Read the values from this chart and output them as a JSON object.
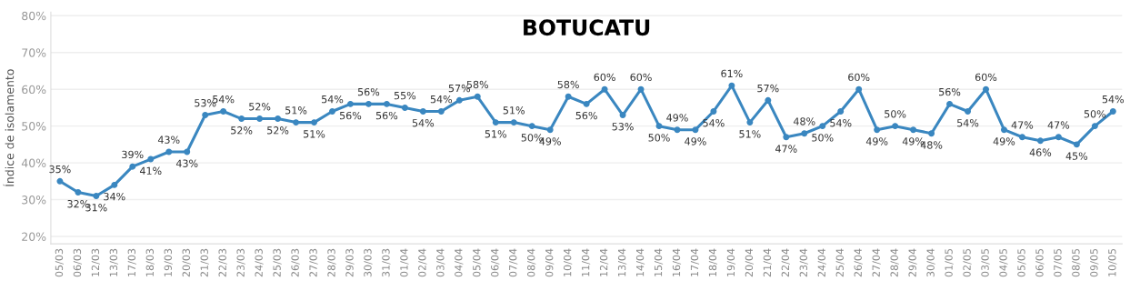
{
  "chart_data": {
    "type": "line",
    "title": "BOTUCATU",
    "ylabel": "Índice de isolamento",
    "categories": [
      "05/03",
      "06/03",
      "12/03",
      "13/03",
      "17/03",
      "18/03",
      "19/03",
      "20/03",
      "21/03",
      "22/03",
      "23/03",
      "24/03",
      "25/03",
      "26/03",
      "27/03",
      "28/03",
      "29/03",
      "30/03",
      "31/03",
      "01/04",
      "02/04",
      "03/04",
      "04/04",
      "05/04",
      "06/04",
      "07/04",
      "08/04",
      "09/04",
      "10/04",
      "11/04",
      "12/04",
      "13/04",
      "14/04",
      "15/04",
      "16/04",
      "17/04",
      "18/04",
      "19/04",
      "20/04",
      "21/04",
      "22/04",
      "23/04",
      "24/04",
      "25/04",
      "26/04",
      "27/04",
      "28/04",
      "29/04",
      "30/04",
      "01/05",
      "02/05",
      "03/05",
      "04/05",
      "05/05",
      "06/05",
      "07/05",
      "08/05",
      "09/05",
      "10/05"
    ],
    "series": [
      {
        "color": "#3a87c0",
        "values": [
          35,
          32,
          31,
          34,
          39,
          41,
          43,
          43,
          53,
          54,
          52,
          52,
          52,
          51,
          51,
          54,
          56,
          56,
          56,
          55,
          54,
          54,
          57,
          58,
          51,
          51,
          50,
          49,
          58,
          56,
          60,
          53,
          60,
          50,
          49,
          49,
          54,
          61,
          51,
          57,
          47,
          48,
          50,
          54,
          60,
          49,
          50,
          49,
          48,
          56,
          54,
          60,
          49,
          47,
          46,
          47,
          45,
          50,
          54
        ],
        "value_labels": [
          "35%",
          "32%",
          "31%",
          "34%",
          "39%",
          "41%",
          "43%",
          "43%",
          "53%",
          "54%",
          "52%",
          "52%",
          "52%",
          "51%",
          "51%",
          "54%",
          "56%",
          "56%",
          "56%",
          "55%",
          "54%",
          "54%",
          "57%",
          "58%",
          "51%",
          "51%",
          "50%",
          "49%",
          "58%",
          "56%",
          "60%",
          "53%",
          "60%",
          "50%",
          "49%",
          "49%",
          "54%",
          "61%",
          "51%",
          "57%",
          "47%",
          "48%",
          "50%",
          "54%",
          "60%",
          "49%",
          "50%",
          "49%",
          "48%",
          "56%",
          "54%",
          "60%",
          "49%",
          "47%",
          "46%",
          "47%",
          "45%",
          "50%",
          "54%"
        ]
      }
    ],
    "ylim": [
      18,
      81
    ],
    "yticks": [
      {
        "value": 20,
        "label": "20%"
      },
      {
        "value": 30,
        "label": "30%"
      },
      {
        "value": 40,
        "label": "40%"
      },
      {
        "value": 50,
        "label": "50%"
      },
      {
        "value": 60,
        "label": "60%"
      },
      {
        "value": 70,
        "label": "70%"
      },
      {
        "value": 80,
        "label": "80%"
      }
    ],
    "grid": "y",
    "marker": "circle",
    "line_style": "solid"
  }
}
